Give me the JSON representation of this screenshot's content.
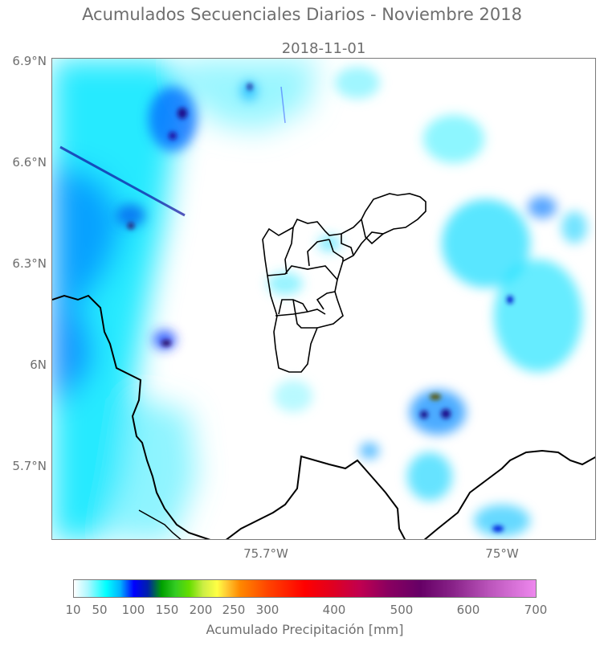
{
  "figure": {
    "suptitle": "Acumulados Secuenciales Diarios - Noviembre 2018",
    "date": "2018-11-01"
  },
  "map": {
    "lat_ticks": [
      "6.9°N",
      "6.6°N",
      "6.3°N",
      "6N",
      "5.7°N"
    ],
    "lon_ticks": [
      "75.7°W",
      "75°W"
    ],
    "extent": {
      "lon": [
        -76.32,
        -74.72
      ],
      "lat": [
        5.48,
        6.9
      ]
    },
    "features": [
      "precipitation-field",
      "department-border",
      "municipality-borders"
    ]
  },
  "colorbar": {
    "label": "Acumulado Precipitación [mm]",
    "ticks": [
      "10",
      "50",
      "100",
      "150",
      "200",
      "250",
      "300",
      "400",
      "500",
      "600",
      "700"
    ],
    "colors": [
      "#ffffff",
      "#00ffff",
      "#0000ff",
      "#00aa00",
      "#88dd00",
      "#ffff00",
      "#ff8800",
      "#ff0000",
      "#cc0055",
      "#660066",
      "#ee88ee"
    ]
  }
}
